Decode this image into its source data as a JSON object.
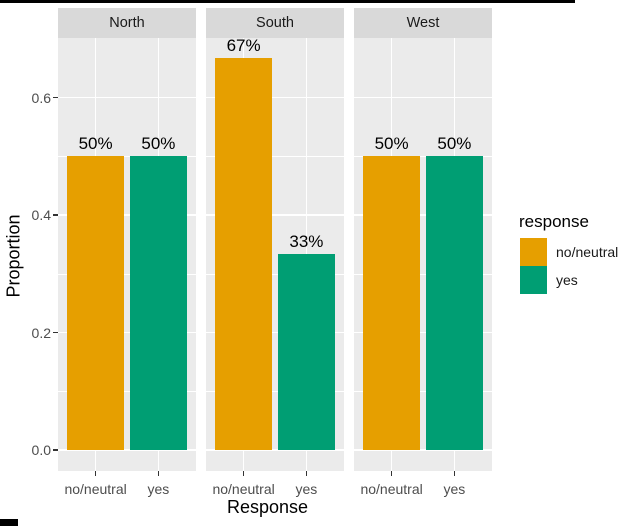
{
  "chart_data": {
    "type": "bar",
    "title": "",
    "facets": [
      "North",
      "South",
      "West"
    ],
    "categories": [
      "no/neutral",
      "yes"
    ],
    "series": [
      {
        "facet": "North",
        "values": [
          0.5,
          0.5
        ],
        "labels": [
          "50%",
          "50%"
        ]
      },
      {
        "facet": "South",
        "values": [
          0.667,
          0.333
        ],
        "labels": [
          "67%",
          "33%"
        ]
      },
      {
        "facet": "West",
        "values": [
          0.5,
          0.5
        ],
        "labels": [
          "50%",
          "50%"
        ]
      }
    ],
    "xlabel": "Response",
    "ylabel": "Proportion",
    "y_ticks": [
      "0.0",
      "0.2",
      "0.4",
      "0.6"
    ],
    "y_tick_values": [
      0.0,
      0.2,
      0.4,
      0.6
    ],
    "ylim": [
      0,
      0.7
    ],
    "grid": "on",
    "legend_position": "right",
    "legend": {
      "title": "response",
      "items": [
        {
          "label": "no/neutral",
          "color": "#E69F00"
        },
        {
          "label": "yes",
          "color": "#009E73"
        }
      ]
    },
    "colors": {
      "bar_orange": "#E69F00",
      "bar_green": "#009E73",
      "panel_bg": "#EBEBEB",
      "strip_bg": "#D9D9D9",
      "gridline": "#FFFFFF",
      "axis_text": "#4D4D4D"
    }
  }
}
